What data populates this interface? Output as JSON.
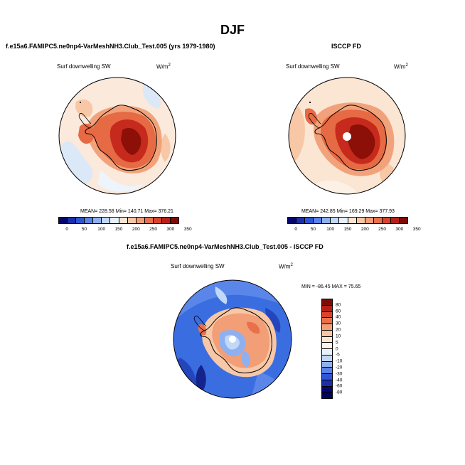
{
  "page": {
    "title": "DJF"
  },
  "panels": {
    "left": {
      "header": "f.e15a6.FAMIPC5.ne0np4-VarMeshNH3.Club_Test.005 (yrs 1979-1980)",
      "variable": "Surf downwelling SW",
      "units_base": "W/m",
      "units_exp": "2",
      "stats": "MEAN= 228.58  Min= 140.71  Max= 376.21"
    },
    "right": {
      "header": "ISCCP FD",
      "variable": "Surf downwelling SW",
      "units_base": "W/m",
      "units_exp": "2",
      "stats": "MEAN= 242.85  Min= 169.29  Max= 377.93"
    },
    "diff": {
      "header": "f.e15a6.FAMIPC5.ne0np4-VarMeshNH3.Club_Test.005 - ISCCP FD",
      "variable": "Surf downwelling SW",
      "units_base": "W/m",
      "units_exp": "2",
      "stats": "MIN = -86.45 MAX =  75.65"
    }
  },
  "colorbar_abs": {
    "ticks": [
      "0",
      "50",
      "100",
      "150",
      "200",
      "250",
      "300",
      "350"
    ],
    "colors": [
      "#06066e",
      "#1a2fa8",
      "#2d55d4",
      "#5a82e8",
      "#8fb0f0",
      "#c2d8f7",
      "#e8f1fb",
      "#fbe5d3",
      "#f7c7a6",
      "#f29e76",
      "#e8704b",
      "#d8432b",
      "#b81f16",
      "#7f0b06"
    ]
  },
  "colorbar_diff": {
    "ticks": [
      "80",
      "60",
      "40",
      "30",
      "20",
      "10",
      "5",
      "0",
      "-5",
      "-10",
      "-20",
      "-30",
      "-40",
      "-60",
      "-80"
    ],
    "colors": [
      "#7f0b06",
      "#b81f16",
      "#d8432b",
      "#e8704b",
      "#f29e76",
      "#f7c7a6",
      "#fbe5d3",
      "#fdf3ea",
      "#e8f1fb",
      "#c2d8f7",
      "#8fb0f0",
      "#5a82e8",
      "#2d55d4",
      "#1a2fa8",
      "#06066e",
      "#03035a"
    ]
  }
}
